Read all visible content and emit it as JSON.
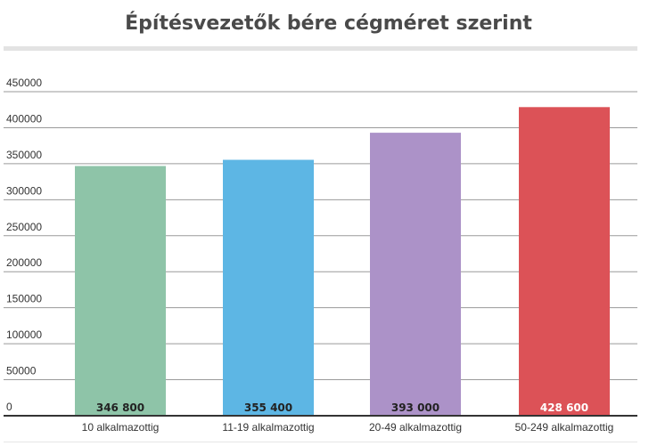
{
  "chart_data": {
    "type": "bar",
    "title": "Építésvezetők bére cégméret szerint",
    "categories": [
      "10 alkalmazottig",
      "11-19 alkalmazottig",
      "20-49 alkalmazottig",
      "50-249 alkalmazottig"
    ],
    "values": [
      346800,
      355400,
      393000,
      428600
    ],
    "data_labels": [
      "346 800",
      "355 400",
      "393 000",
      "428 600"
    ],
    "colors": [
      "#8ec4a8",
      "#5db6e4",
      "#ac92c8",
      "#dc5257"
    ],
    "label_colors": [
      "#222222",
      "#222222",
      "#222222",
      "#ffffff"
    ],
    "ylim": [
      0,
      450000
    ],
    "yticks": [
      0,
      50000,
      100000,
      150000,
      200000,
      250000,
      300000,
      350000,
      400000,
      450000
    ],
    "ytick_labels": [
      "0",
      "50000",
      "100000",
      "150000",
      "200000",
      "250000",
      "300000",
      "350000",
      "400000",
      "450000"
    ],
    "xlabel": "",
    "ylabel": "",
    "grid": true,
    "legend": "none"
  }
}
